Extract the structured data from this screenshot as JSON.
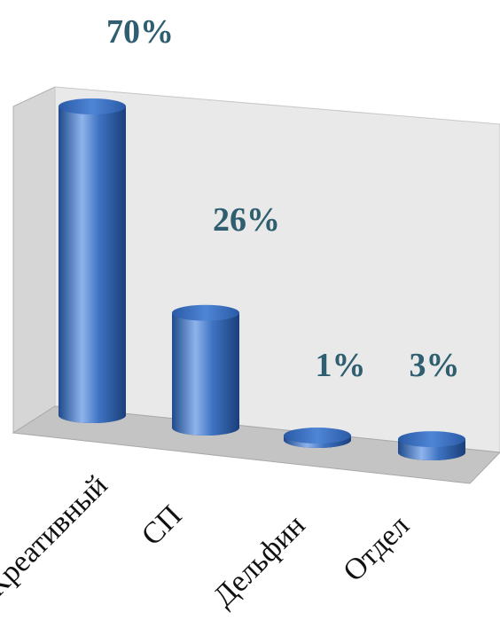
{
  "chart_data": {
    "type": "bar",
    "style": "3d-cylinder",
    "categories": [
      "Креативный",
      "СП",
      "Дельфин",
      "Отдел"
    ],
    "values": [
      70,
      26,
      1,
      3
    ],
    "value_labels": [
      "70%",
      "26%",
      "1%",
      "3%"
    ],
    "unit": "%",
    "title": "",
    "xlabel": "",
    "ylabel": "",
    "ylim": [
      0,
      70
    ],
    "grid": false,
    "legend": "none",
    "colors": {
      "bar": "#3f73c2",
      "bar_dark": "#1f4a8c",
      "bar_light": "#8fb4ec",
      "label": "#2e5e6f",
      "back_wall": "#e9e9e9",
      "side_wall": "#d6d6d6",
      "floor": "#c4c4c4"
    }
  }
}
